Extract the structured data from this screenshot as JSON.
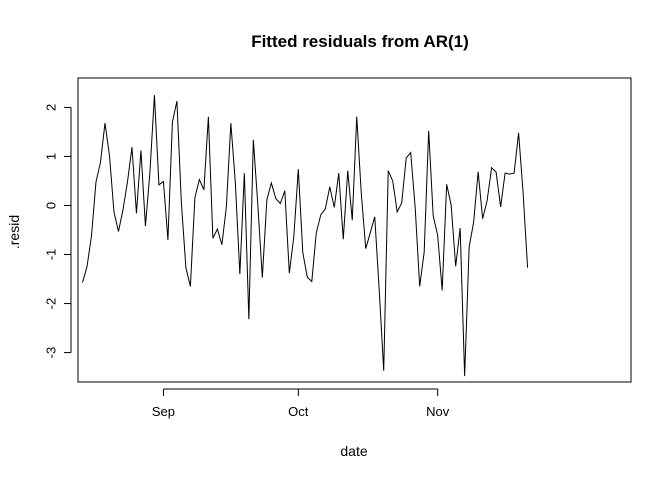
{
  "chart_data": {
    "type": "line",
    "title": "Fitted residuals from AR(1)",
    "xlabel": "date",
    "ylabel": ".resid",
    "x_ticks": [
      {
        "label": "Sep",
        "date": "2021-09-01"
      },
      {
        "label": "Oct",
        "date": "2021-10-01"
      },
      {
        "label": "Nov",
        "date": "2021-11-01"
      }
    ],
    "y_ticks": [
      -3,
      -2,
      -1,
      0,
      1,
      2
    ],
    "y_tick_labels": [
      "-3",
      "-2",
      "-1",
      "0",
      "1",
      "2"
    ],
    "xlim": [
      "2021-08-13",
      "2021-12-14"
    ],
    "ylim": [
      -3.6,
      2.6
    ],
    "grid": false,
    "line_color": "#000000",
    "x_start": "2021-08-14",
    "x_step_days": 1,
    "values": [
      -1.57,
      -1.25,
      -0.62,
      0.48,
      0.88,
      1.68,
      1.02,
      -0.13,
      -0.53,
      -0.09,
      0.48,
      1.19,
      -0.16,
      1.12,
      -0.42,
      0.68,
      2.25,
      0.42,
      0.49,
      -0.7,
      1.7,
      2.13,
      0.04,
      -1.27,
      -1.65,
      0.16,
      0.53,
      0.32,
      1.81,
      -0.67,
      -0.48,
      -0.8,
      -0.03,
      1.68,
      0.46,
      -1.4,
      0.66,
      -2.32,
      1.34,
      0.01,
      -1.47,
      0.11,
      0.46,
      0.14,
      0.04,
      0.3,
      -1.38,
      -0.64,
      0.74,
      -0.96,
      -1.46,
      -1.55,
      -0.56,
      -0.19,
      -0.07,
      0.38,
      -0.04,
      0.66,
      -0.69,
      0.71,
      -0.3,
      1.81,
      0.26,
      -0.88,
      -0.56,
      -0.23,
      -1.73,
      -3.37,
      0.71,
      0.5,
      -0.13,
      0.05,
      0.97,
      1.08,
      -0.05,
      -1.65,
      -0.95,
      1.52,
      -0.21,
      -0.61,
      -1.73,
      0.43,
      0.01,
      -1.24,
      -0.46,
      -3.48,
      -0.85,
      -0.34,
      0.69,
      -0.27,
      0.1,
      0.77,
      0.68,
      -0.03,
      0.66,
      0.64,
      0.66,
      1.48,
      0.26,
      -1.27
    ]
  }
}
